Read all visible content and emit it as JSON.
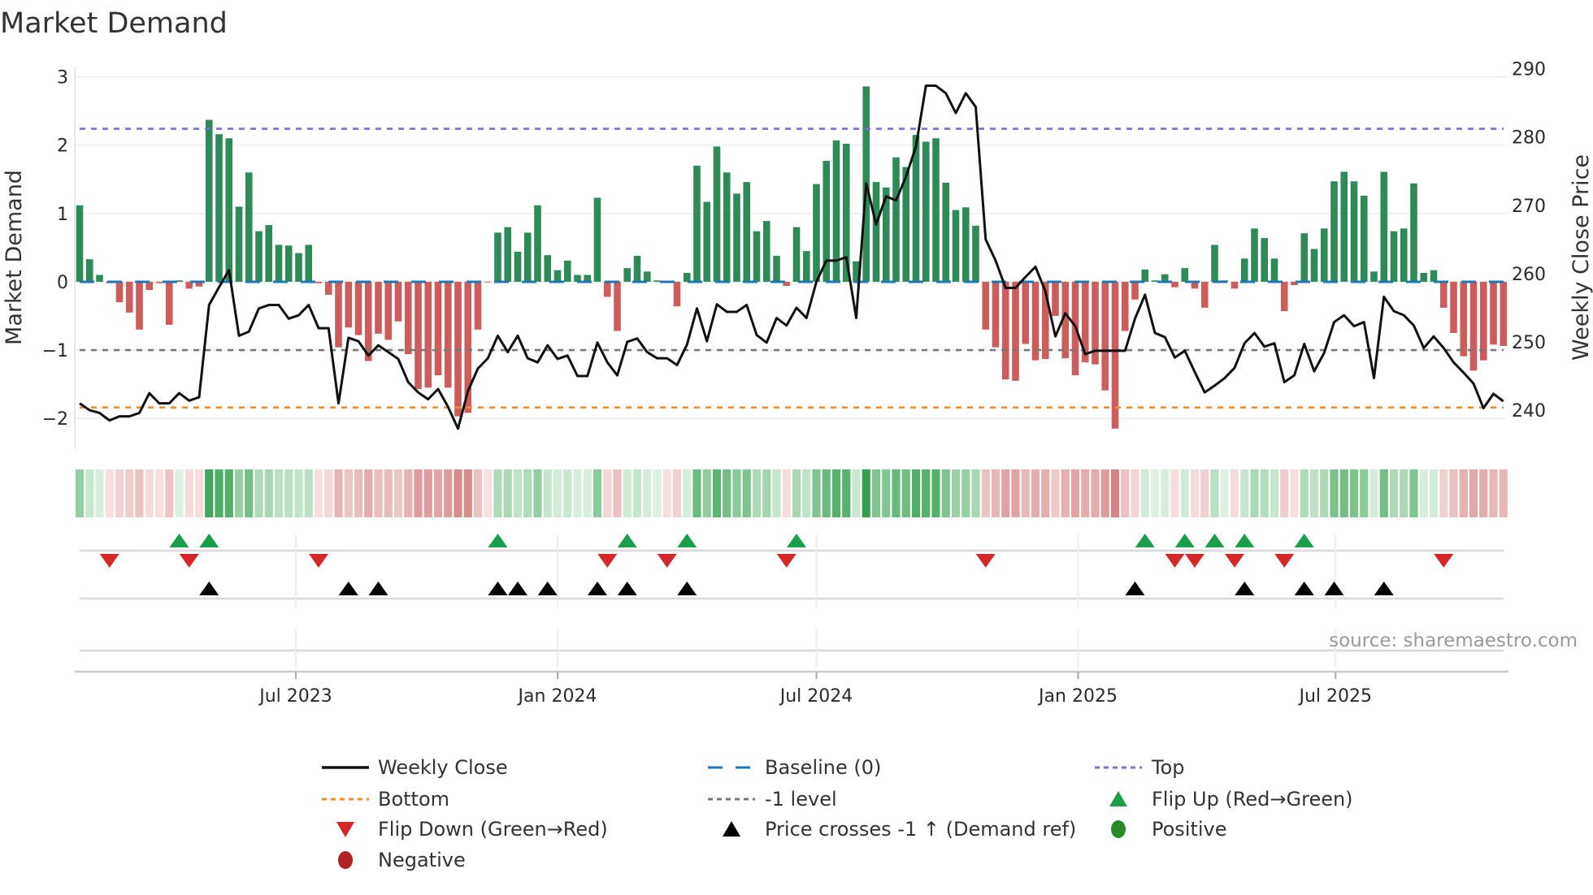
{
  "chart_data": {
    "type": "bar",
    "title": "Market Demand",
    "ylabel": "Market Demand",
    "y2label": "Weekly Close Price",
    "ylim": [
      -2.45,
      3.15
    ],
    "y2lim": [
      235.5,
      291.5
    ],
    "yticks": [
      "3",
      "2",
      "1",
      "0",
      "−1",
      "−2"
    ],
    "ytick_values": [
      3,
      2,
      1,
      0,
      -1,
      -2
    ],
    "y2ticks": [
      "290",
      "280",
      "270",
      "260",
      "250",
      "240"
    ],
    "y2tick_values": [
      290,
      280,
      270,
      260,
      250,
      240
    ],
    "x_start_week": "2023-01-30",
    "x_interval_days": 7,
    "xticks": [
      {
        "label": "Jul 2023",
        "date": "2023-07-01"
      },
      {
        "label": "Jan 2024",
        "date": "2024-01-01"
      },
      {
        "label": "Jul 2024",
        "date": "2024-07-01"
      },
      {
        "label": "Jan 2025",
        "date": "2025-01-01"
      },
      {
        "label": "Jul 2025",
        "date": "2025-07-01"
      }
    ],
    "series": [
      {
        "name": "Market Demand",
        "type": "bar",
        "axis": "left",
        "values": [
          1.12,
          0.33,
          0.1,
          -0.02,
          -0.3,
          -0.45,
          -0.7,
          -0.12,
          -0.02,
          -0.63,
          0.02,
          -0.1,
          -0.07,
          2.37,
          2.16,
          2.1,
          1.1,
          1.6,
          0.74,
          0.83,
          0.54,
          0.53,
          0.42,
          0.54,
          -0.02,
          -0.19,
          -0.96,
          -0.67,
          -0.78,
          -1.16,
          -0.76,
          -0.85,
          -0.58,
          -1.06,
          -1.57,
          -1.55,
          -1.37,
          -1.55,
          -1.97,
          -1.92,
          -0.7,
          -0.01,
          0.72,
          0.8,
          0.44,
          0.72,
          1.12,
          0.39,
          0.17,
          0.31,
          0.1,
          0.1,
          1.23,
          -0.22,
          -0.72,
          0.2,
          0.38,
          0.15,
          0.02,
          -0.02,
          -0.36,
          0.13,
          1.7,
          1.17,
          1.98,
          1.6,
          1.29,
          1.46,
          0.74,
          0.89,
          0.38,
          -0.06,
          0.8,
          0.45,
          1.43,
          1.77,
          2.07,
          2.02,
          0.3,
          2.86,
          1.46,
          1.38,
          1.82,
          1.68,
          2.15,
          2.05,
          2.1,
          1.45,
          1.05,
          1.09,
          0.82,
          -0.7,
          -0.96,
          -1.43,
          -1.45,
          -0.91,
          -1.15,
          -1.13,
          -0.5,
          -1.12,
          -1.37,
          -1.18,
          -1.21,
          -1.59,
          -2.15,
          -0.72,
          -0.26,
          0.18,
          0.02,
          0.11,
          -0.08,
          0.2,
          -0.1,
          -0.38,
          0.54,
          0.02,
          -0.1,
          0.34,
          0.78,
          0.64,
          0.34,
          -0.43,
          -0.05,
          0.71,
          0.48,
          0.78,
          1.47,
          1.61,
          1.47,
          1.26,
          0.15,
          1.61,
          0.74,
          0.78,
          1.44,
          0.13,
          0.17,
          -0.38,
          -0.75,
          -1.09,
          -1.3,
          -1.15,
          -0.92,
          -0.94
        ]
      },
      {
        "name": "Weekly Close",
        "type": "line",
        "axis": "right",
        "values": [
          242.2,
          241.2,
          240.8,
          239.7,
          240.3,
          240.3,
          240.8,
          243.7,
          242.2,
          242.2,
          243.7,
          242.6,
          243.1,
          256.6,
          259.2,
          261.7,
          252.1,
          252.7,
          256.1,
          256.6,
          256.6,
          254.6,
          255.1,
          256.6,
          253.2,
          253.2,
          242.2,
          251.8,
          251.3,
          249.2,
          250.7,
          249.7,
          248.7,
          245.3,
          243.8,
          242.8,
          244.3,
          241.7,
          238.5,
          244.0,
          247.3,
          248.8,
          252.1,
          249.7,
          252.1,
          248.8,
          248.2,
          250.7,
          248.7,
          249.2,
          246.2,
          246.2,
          251.1,
          248.2,
          246.3,
          251.2,
          251.7,
          249.7,
          248.8,
          248.8,
          247.8,
          250.8,
          256.1,
          251.3,
          256.7,
          255.6,
          255.6,
          256.6,
          252.2,
          251.1,
          254.7,
          253.6,
          256.2,
          254.7,
          260.0,
          263.1,
          263.1,
          263.6,
          254.7,
          274.4,
          268.4,
          272.5,
          271.9,
          275.4,
          279.8,
          288.7,
          288.7,
          287.6,
          284.7,
          287.6,
          285.6,
          266.2,
          263.1,
          259.1,
          259.1,
          260.7,
          262.2,
          258.6,
          252.0,
          255.4,
          253.5,
          249.4,
          249.9,
          249.9,
          249.9,
          249.9,
          254.6,
          258.1,
          252.5,
          251.9,
          248.9,
          249.9,
          246.8,
          243.8,
          244.8,
          245.9,
          247.4,
          251.0,
          252.5,
          250.5,
          251.0,
          245.3,
          246.3,
          250.9,
          246.9,
          249.6,
          254.1,
          255.1,
          253.5,
          254.1,
          245.9,
          257.8,
          255.7,
          255.1,
          253.6,
          250.3,
          252.0,
          250.3,
          248.2,
          246.7,
          245.1,
          241.5,
          243.6,
          242.5
        ]
      }
    ],
    "reference_lines": [
      {
        "name": "Baseline (0)",
        "value": 0,
        "color": "#1f77b4",
        "style": "dashed"
      },
      {
        "name": "Top",
        "value": 2.24,
        "color": "#7b6fd6",
        "style": "dotted"
      },
      {
        "name": "Bottom",
        "value": -1.84,
        "color": "#f28e2b",
        "style": "dotted"
      },
      {
        "name": "-1 level",
        "value": -1,
        "color": "#777777",
        "style": "dotted"
      }
    ],
    "markers": {
      "flip_up_weeks": [
        10,
        13,
        42,
        55,
        61,
        72,
        107,
        111,
        114,
        117,
        123
      ],
      "flip_down_weeks": [
        3,
        11,
        24,
        53,
        59,
        71,
        91,
        110,
        112,
        116,
        121,
        137
      ],
      "price_cross_weeks": [
        13,
        27,
        30,
        42,
        44,
        47,
        52,
        55,
        61,
        106,
        117,
        123,
        126,
        131
      ]
    },
    "colors": {
      "positive_bar": "#2e8b57",
      "negative_bar": "#cd5c5c",
      "line": "#111111",
      "flip_up": "#1a9e4a",
      "flip_down": "#d62728",
      "cross": "#000000",
      "positive": "#2a8a2a",
      "negative": "#b22222"
    },
    "grid": true,
    "legend_position": "bottom"
  },
  "legend": [
    {
      "label": "Weekly Close",
      "symbol": "solid-line"
    },
    {
      "label": "Baseline (0)",
      "symbol": "dashed-line"
    },
    {
      "label": "Top",
      "symbol": "dotted-line-purple"
    },
    {
      "label": "Bottom",
      "symbol": "dotted-line-orange"
    },
    {
      "label": "-1 level",
      "symbol": "dotted-line-gray"
    },
    {
      "label": "Flip Up (Red→Green)",
      "symbol": "triangle-up-green"
    },
    {
      "label": "Flip Down (Green→Red)",
      "symbol": "triangle-down-red"
    },
    {
      "label": "Price crosses -1 ↑ (Demand ref)",
      "symbol": "triangle-up-black"
    },
    {
      "label": "Positive",
      "symbol": "circle-green"
    },
    {
      "label": "Negative",
      "symbol": "circle-red"
    }
  ],
  "source": "source: sharemaestro.com"
}
